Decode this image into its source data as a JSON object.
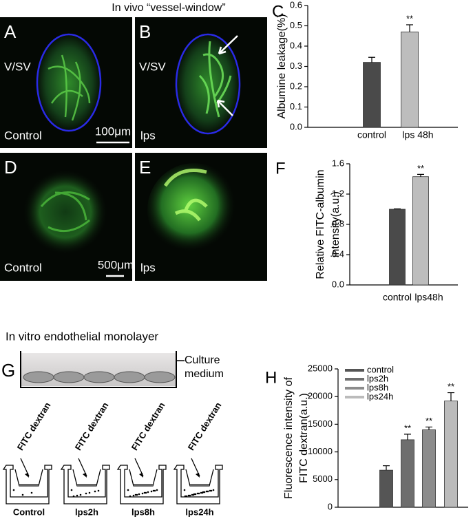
{
  "header": "In vivo “vessel-window”",
  "panels": [
    {
      "letter": "A",
      "labels": [
        "V/SV",
        "Control",
        "100μm"
      ]
    },
    {
      "letter": "B",
      "labels": [
        "V/SV",
        "lps"
      ]
    },
    {
      "letter": "D",
      "labels": [
        "Control",
        "500μm"
      ]
    },
    {
      "letter": "E",
      "labels": [
        "lps"
      ]
    }
  ],
  "section_title": "In vitro endothelial monolayer",
  "diagram": {
    "letter": "G",
    "medium_label": [
      "Culture",
      "medium"
    ],
    "reagent": "FITC dextran",
    "conditions": [
      "Control",
      "lps2h",
      "lps8h",
      "lps24h"
    ]
  },
  "chart_data": [
    {
      "type": "bar",
      "panel_label": "C",
      "y_label": [
        "Albumine leakage(%)"
      ],
      "categories": [
        "control",
        "lps 48h"
      ],
      "values": [
        0.32,
        0.47
      ],
      "errors": [
        0.025,
        0.035
      ],
      "colors": [
        "#4a4a4a",
        "#bdbdbd"
      ],
      "significance": [
        null,
        "**"
      ],
      "ylim": [
        0,
        0.6
      ],
      "yticks": [
        {
          "value": 0,
          "label": "0.0"
        },
        {
          "value": 0.1,
          "label": "0.1"
        },
        {
          "value": 0.2,
          "label": "0.2"
        },
        {
          "value": 0.3,
          "label": "0.3"
        },
        {
          "value": 0.4,
          "label": "0.4"
        },
        {
          "value": 0.5,
          "label": "0.5"
        },
        {
          "value": 0.6,
          "label": "0.6"
        }
      ],
      "legend": false
    },
    {
      "type": "bar",
      "panel_label": "F",
      "y_label": [
        "Relative  FITC-albumin",
        "intensity(a.u.)"
      ],
      "categories": [
        "control",
        "lps48h"
      ],
      "values": [
        1.0,
        1.43
      ],
      "errors": [
        0.005,
        0.03
      ],
      "colors": [
        "#4a4a4a",
        "#bdbdbd"
      ],
      "significance": [
        null,
        "**"
      ],
      "ylim": [
        0,
        1.6
      ],
      "yticks": [
        {
          "value": 0,
          "label": "0.0"
        },
        {
          "value": 0.4,
          "label": "0.4"
        },
        {
          "value": 0.8,
          "label": "0.8"
        },
        {
          "value": 1.2,
          "label": "1.2"
        },
        {
          "value": 1.6,
          "label": "1.6"
        }
      ],
      "legend": false
    },
    {
      "type": "bar",
      "panel_label": "H",
      "y_label": [
        "Fluorescence intensity of",
        "FITC dextran(a.u.)"
      ],
      "categories": [
        "control",
        "lps2h",
        "lps8h",
        "lps24h"
      ],
      "values": [
        6700,
        12200,
        14000,
        19200
      ],
      "errors": [
        800,
        1000,
        500,
        1500
      ],
      "colors": [
        "#555555",
        "#6e6e6e",
        "#8c8c8c",
        "#bbbbbb"
      ],
      "significance": [
        null,
        "**",
        "**",
        "**"
      ],
      "ylim": [
        0,
        25000
      ],
      "yticks": [
        0,
        5000,
        10000,
        15000,
        20000,
        25000
      ],
      "legend": "upper left"
    }
  ]
}
